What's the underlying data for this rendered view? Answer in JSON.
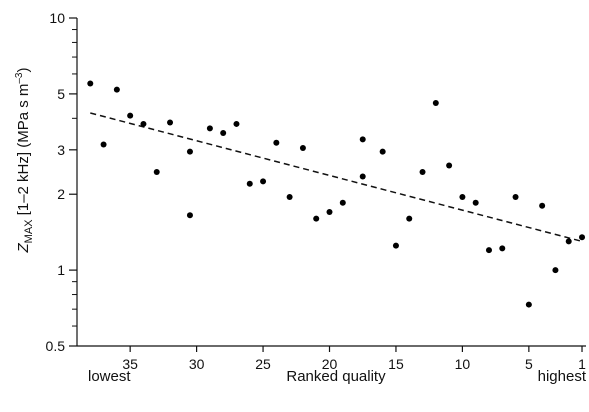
{
  "chart_data": {
    "type": "scatter",
    "title": "",
    "xlabel": "Ranked quality",
    "xlabel_left": "lowest",
    "xlabel_right": "highest",
    "ylabel_prefix": "Z",
    "ylabel_sub": "MAX",
    "ylabel_rest": " [1–2 kHz]   (MPa s m",
    "ylabel_sup": "–3",
    "ylabel_end": ")",
    "x_scale": "linear",
    "x_reversed": true,
    "xlim": [
      39,
      0.7
    ],
    "x_ticks": [
      35,
      30,
      25,
      20,
      15,
      10,
      5,
      1
    ],
    "y_scale": "log",
    "ylim": [
      0.5,
      10
    ],
    "y_tick_labels": [
      {
        "value": 0.5,
        "label": "0.5"
      },
      {
        "value": 1,
        "label": "1"
      },
      {
        "value": 2,
        "label": "2"
      },
      {
        "value": 3,
        "label": "3"
      },
      {
        "value": 5,
        "label": "5"
      },
      {
        "value": 10,
        "label": "10"
      }
    ],
    "y_minor_ticks": [
      0.6,
      0.7,
      0.8,
      0.9,
      4,
      6,
      7,
      8,
      9
    ],
    "grid": false,
    "points": [
      {
        "x": 38,
        "y": 5.5
      },
      {
        "x": 37,
        "y": 3.15
      },
      {
        "x": 36,
        "y": 5.2
      },
      {
        "x": 35,
        "y": 4.1
      },
      {
        "x": 34,
        "y": 3.8
      },
      {
        "x": 33,
        "y": 2.45
      },
      {
        "x": 32,
        "y": 3.85
      },
      {
        "x": 30.5,
        "y": 1.65
      },
      {
        "x": 30.5,
        "y": 2.95
      },
      {
        "x": 29,
        "y": 3.65
      },
      {
        "x": 28,
        "y": 3.5
      },
      {
        "x": 27,
        "y": 3.8
      },
      {
        "x": 26,
        "y": 2.2
      },
      {
        "x": 25,
        "y": 2.25
      },
      {
        "x": 24,
        "y": 3.2
      },
      {
        "x": 23,
        "y": 1.95
      },
      {
        "x": 22,
        "y": 3.05
      },
      {
        "x": 21,
        "y": 1.6
      },
      {
        "x": 20,
        "y": 1.7
      },
      {
        "x": 19,
        "y": 1.85
      },
      {
        "x": 17.5,
        "y": 2.35
      },
      {
        "x": 17.5,
        "y": 3.3
      },
      {
        "x": 16,
        "y": 2.95
      },
      {
        "x": 15,
        "y": 1.25
      },
      {
        "x": 14,
        "y": 1.6
      },
      {
        "x": 13,
        "y": 2.45
      },
      {
        "x": 12,
        "y": 4.6
      },
      {
        "x": 11,
        "y": 2.6
      },
      {
        "x": 10,
        "y": 1.95
      },
      {
        "x": 9,
        "y": 1.85
      },
      {
        "x": 8,
        "y": 1.2
      },
      {
        "x": 7,
        "y": 1.22
      },
      {
        "x": 6,
        "y": 1.95
      },
      {
        "x": 5,
        "y": 0.73
      },
      {
        "x": 4,
        "y": 1.8
      },
      {
        "x": 3,
        "y": 1.0
      },
      {
        "x": 2,
        "y": 1.3
      },
      {
        "x": 1,
        "y": 1.35
      }
    ],
    "trend_line": {
      "style": "dashed",
      "x": [
        38,
        1
      ],
      "y": [
        4.2,
        1.3
      ]
    }
  }
}
